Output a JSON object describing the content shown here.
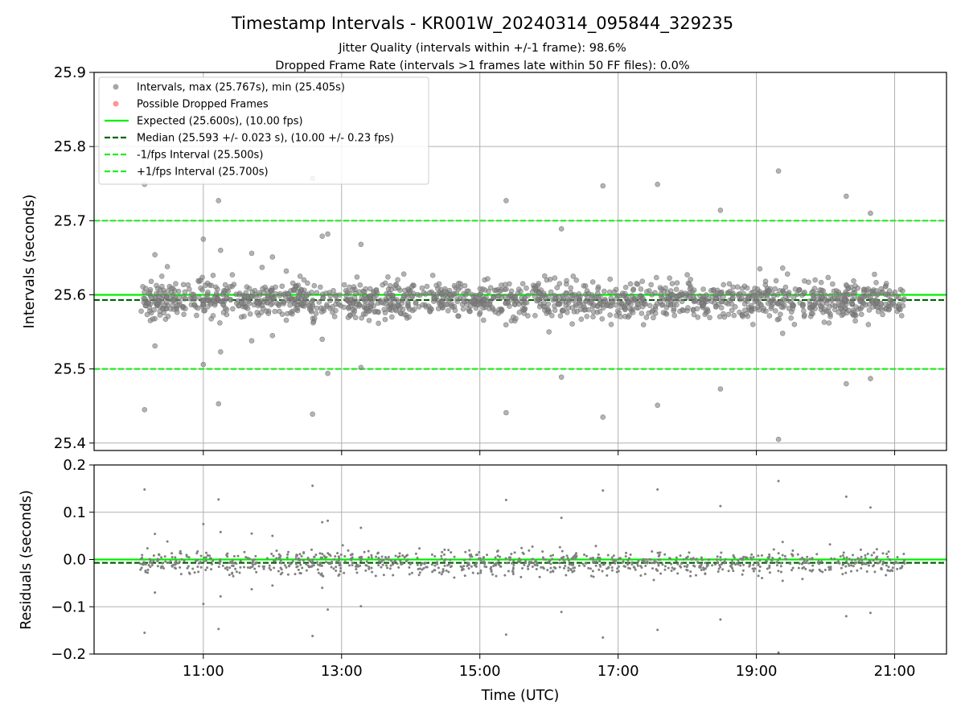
{
  "chart_data": {
    "title": "Timestamp Intervals - KR001W_20240314_095844_329235",
    "subtitle_1": "Jitter Quality (intervals within +/-1 frame): 98.6%",
    "subtitle_2": "Dropped Frame Rate (intervals >1 frames late within 50 FF files): 0.0%",
    "xlabel": "Time (UTC)",
    "x_ticks": [
      "11:00",
      "13:00",
      "15:00",
      "17:00",
      "19:00",
      "21:00"
    ],
    "x_tick_hours": [
      11,
      13,
      15,
      17,
      19,
      21
    ],
    "xlim_hours": [
      9.42,
      21.75
    ],
    "colors": {
      "intervals": "#808080",
      "dropped": "#ff6666",
      "expected": "#00ee00",
      "median": "#006400",
      "fps_bounds": "#22ee22",
      "grid": "#b0b0b0"
    },
    "panels": [
      {
        "type": "scatter",
        "ylabel": "Intervals (seconds)",
        "ylim": [
          25.39,
          25.9
        ],
        "y_ticks": [
          "25.4",
          "25.5",
          "25.6",
          "25.7",
          "25.8",
          "25.9"
        ],
        "y_tick_values": [
          25.4,
          25.5,
          25.6,
          25.7,
          25.8,
          25.9
        ],
        "grid": true,
        "legend_position": "top-left",
        "legend": [
          {
            "kind": "marker",
            "color_key": "intervals",
            "label": "Intervals, max (25.767s), min (25.405s)"
          },
          {
            "kind": "marker",
            "color_key": "dropped",
            "label": "Possible Dropped Frames"
          },
          {
            "kind": "solid",
            "color_key": "expected",
            "label": "Expected (25.600s), (10.00 fps)"
          },
          {
            "kind": "dashed",
            "color_key": "median",
            "label": "Median (25.593 +/- 0.023 s), (10.00 +/- 0.23 fps)"
          },
          {
            "kind": "dashed",
            "color_key": "fps_bounds",
            "label": "-1/fps Interval (25.500s)"
          },
          {
            "kind": "dashed",
            "color_key": "fps_bounds",
            "label": "+1/fps Interval (25.700s)"
          }
        ],
        "hlines": [
          {
            "y": 25.6,
            "style": "solid",
            "color_key": "expected"
          },
          {
            "y": 25.593,
            "style": "dashed",
            "color_key": "median"
          },
          {
            "y": 25.5,
            "style": "dashed",
            "color_key": "fps_bounds"
          },
          {
            "y": 25.7,
            "style": "dashed",
            "color_key": "fps_bounds"
          }
        ],
        "series": [
          {
            "color_key": "intervals",
            "bulk": {
              "start_hour": 10.08,
              "end_hour": 21.15,
              "count": 1500,
              "center": 25.593,
              "spread": 0.012
            },
            "outliers": [
              [
                10.15,
                25.749
              ],
              [
                10.15,
                25.445
              ],
              [
                10.3,
                25.654
              ],
              [
                10.3,
                25.531
              ],
              [
                10.4,
                25.625
              ],
              [
                10.48,
                25.638
              ],
              [
                10.6,
                25.615
              ],
              [
                11.0,
                25.675
              ],
              [
                11.0,
                25.506
              ],
              [
                11.22,
                25.727
              ],
              [
                11.22,
                25.453
              ],
              [
                11.25,
                25.66
              ],
              [
                11.25,
                25.523
              ],
              [
                11.42,
                25.627
              ],
              [
                11.7,
                25.656
              ],
              [
                11.7,
                25.538
              ],
              [
                11.85,
                25.637
              ],
              [
                12.0,
                25.651
              ],
              [
                12.0,
                25.545
              ],
              [
                12.2,
                25.632
              ],
              [
                12.4,
                25.625
              ],
              [
                12.58,
                25.757
              ],
              [
                12.58,
                25.439
              ],
              [
                12.72,
                25.679
              ],
              [
                12.72,
                25.54
              ],
              [
                12.8,
                25.682
              ],
              [
                12.8,
                25.494
              ],
              [
                13.28,
                25.668
              ],
              [
                13.28,
                25.502
              ],
              [
                13.9,
                25.628
              ],
              [
                15.38,
                25.727
              ],
              [
                15.38,
                25.441
              ],
              [
                16.0,
                25.55
              ],
              [
                16.18,
                25.689
              ],
              [
                16.18,
                25.489
              ],
              [
                16.35,
                25.625
              ],
              [
                16.78,
                25.747
              ],
              [
                16.78,
                25.435
              ],
              [
                16.9,
                25.56
              ],
              [
                17.57,
                25.749
              ],
              [
                17.57,
                25.451
              ],
              [
                18.0,
                25.627
              ],
              [
                18.48,
                25.714
              ],
              [
                18.48,
                25.473
              ],
              [
                18.95,
                25.56
              ],
              [
                19.05,
                25.635
              ],
              [
                19.32,
                25.767
              ],
              [
                19.32,
                25.405
              ],
              [
                19.38,
                25.636
              ],
              [
                19.38,
                25.548
              ],
              [
                19.45,
                25.628
              ],
              [
                19.55,
                25.56
              ],
              [
                19.85,
                25.62
              ],
              [
                20.3,
                25.733
              ],
              [
                20.3,
                25.48
              ],
              [
                20.65,
                25.71
              ],
              [
                20.65,
                25.487
              ],
              [
                20.05,
                25.562
              ]
            ]
          }
        ]
      },
      {
        "type": "scatter",
        "ylabel": "Residuals (seconds)",
        "ylim": [
          -0.2,
          0.2
        ],
        "y_ticks": [
          "0.2",
          "0.1",
          "0.0",
          "−0.1",
          "−0.2"
        ],
        "y_tick_values": [
          0.2,
          0.1,
          0.0,
          -0.1,
          -0.2
        ],
        "grid": true,
        "hlines": [
          {
            "y": 0.0,
            "style": "solid",
            "color_key": "expected"
          },
          {
            "y": -0.007,
            "style": "dashed",
            "color_key": "median"
          }
        ],
        "series": [
          {
            "color_key": "intervals",
            "bulk": {
              "start_hour": 10.08,
              "end_hour": 21.15,
              "count": 1000,
              "center": -0.007,
              "spread": 0.013
            },
            "outliers": [
              [
                10.15,
                0.148
              ],
              [
                10.15,
                -0.155
              ],
              [
                10.3,
                0.054
              ],
              [
                10.3,
                -0.07
              ],
              [
                10.48,
                0.038
              ],
              [
                11.0,
                0.075
              ],
              [
                11.0,
                -0.094
              ],
              [
                11.22,
                0.127
              ],
              [
                11.22,
                -0.147
              ],
              [
                11.25,
                0.058
              ],
              [
                11.25,
                -0.078
              ],
              [
                11.7,
                0.055
              ],
              [
                11.7,
                -0.063
              ],
              [
                12.0,
                0.05
              ],
              [
                12.0,
                -0.055
              ],
              [
                12.58,
                0.156
              ],
              [
                12.58,
                -0.162
              ],
              [
                12.72,
                0.079
              ],
              [
                12.72,
                -0.06
              ],
              [
                12.8,
                0.082
              ],
              [
                12.8,
                -0.106
              ],
              [
                13.28,
                0.067
              ],
              [
                13.28,
                -0.099
              ],
              [
                15.38,
                0.126
              ],
              [
                15.38,
                -0.159
              ],
              [
                16.18,
                0.088
              ],
              [
                16.18,
                -0.111
              ],
              [
                16.78,
                0.146
              ],
              [
                16.78,
                -0.165
              ],
              [
                17.57,
                0.148
              ],
              [
                17.57,
                -0.149
              ],
              [
                18.48,
                0.113
              ],
              [
                18.48,
                -0.127
              ],
              [
                19.32,
                0.166
              ],
              [
                19.32,
                -0.197
              ],
              [
                19.38,
                0.037
              ],
              [
                19.38,
                -0.045
              ],
              [
                20.3,
                0.133
              ],
              [
                20.3,
                -0.12
              ],
              [
                20.65,
                0.11
              ],
              [
                20.65,
                -0.113
              ]
            ]
          }
        ]
      }
    ]
  }
}
